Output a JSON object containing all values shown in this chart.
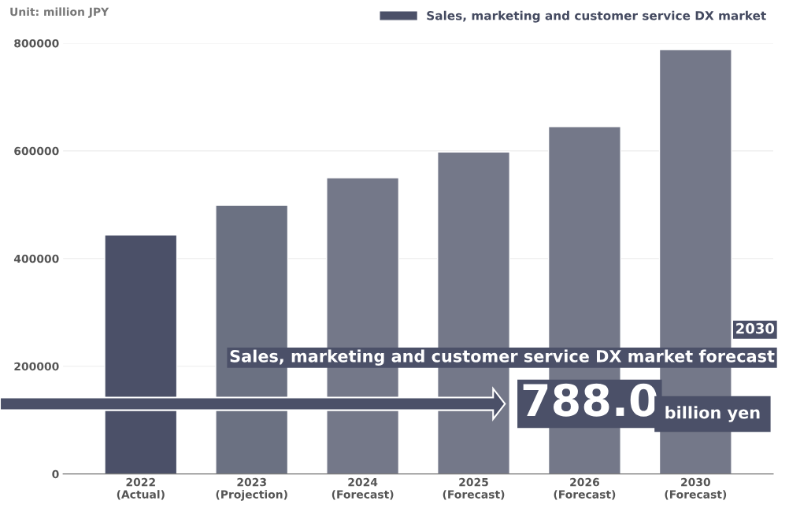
{
  "chart_data": {
    "type": "bar",
    "categories": [
      "2022\n(Actual)",
      "2023\n(Projection)",
      "2024\n(Forecast)",
      "2025\n(Forecast)",
      "2026\n(Forecast)",
      "2030\n(Forecast)"
    ],
    "series": [
      {
        "name": "Sales, marketing and customer service DX market",
        "color": "#4b5068",
        "colors": [
          "#4b5068",
          "#6b7182",
          "#747889",
          "#747889",
          "#747889",
          "#747889"
        ],
        "values": [
          444000,
          499000,
          550000,
          598000,
          645000,
          788000
        ]
      }
    ],
    "ylim": [
      0,
      800000
    ],
    "yticks": [
      0,
      200000,
      400000,
      600000,
      800000
    ],
    "grid": "y",
    "legend": "top right",
    "annotations": [
      "Unit: million JPY",
      "2030",
      "Sales, marketing and customer service DX market forecast",
      "788.0",
      "billion yen"
    ]
  }
}
